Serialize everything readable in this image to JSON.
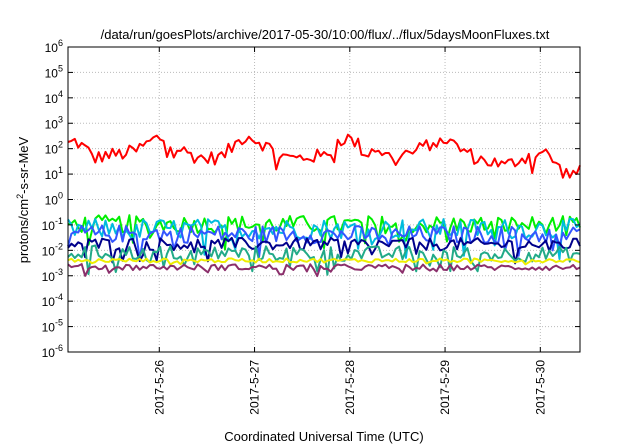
{
  "chart_data": {
    "type": "line",
    "title": "/data/run/goesPlots/archive/2017-05-30/10:00/flux/../flux/5daysMoonFluxes.txt",
    "xlabel": "Coordinated Universal Time (UTC)",
    "ylabel": {
      "main": "protons/cm",
      "sup": "2",
      "rest": "-s-sr-MeV"
    },
    "yscale": "log",
    "ylim": [
      1e-06,
      1000000.0
    ],
    "y_ticks": [
      {
        "value": 1000000.0,
        "base": "10",
        "exp": "6"
      },
      {
        "value": 100000.0,
        "base": "10",
        "exp": "5"
      },
      {
        "value": 10000.0,
        "base": "10",
        "exp": "4"
      },
      {
        "value": 1000.0,
        "base": "10",
        "exp": "3"
      },
      {
        "value": 100.0,
        "base": "10",
        "exp": "2"
      },
      {
        "value": 10.0,
        "base": "10",
        "exp": "1"
      },
      {
        "value": 1.0,
        "base": "10",
        "exp": "0"
      },
      {
        "value": 0.1,
        "base": "10",
        "exp": "-1"
      },
      {
        "value": 0.01,
        "base": "10",
        "exp": "-2"
      },
      {
        "value": 0.001,
        "base": "10",
        "exp": "-3"
      },
      {
        "value": 0.0001,
        "base": "10",
        "exp": "-4"
      },
      {
        "value": 1e-05,
        "base": "10",
        "exp": "-5"
      },
      {
        "value": 1e-06,
        "base": "10",
        "exp": "-6"
      }
    ],
    "xlim": [
      "2017-05-25T01:00",
      "2017-05-30T10:00"
    ],
    "x_ticks": [
      {
        "value": "2017-05-26T00:00",
        "label": "2017-5-26"
      },
      {
        "value": "2017-05-27T00:00",
        "label": "2017-5-27"
      },
      {
        "value": "2017-05-28T00:00",
        "label": "2017-5-28"
      },
      {
        "value": "2017-05-29T00:00",
        "label": "2017-5-29"
      },
      {
        "value": "2017-05-30T00:00",
        "label": "2017-5-30"
      }
    ],
    "grid": true,
    "series": [
      {
        "color": "#ff0000",
        "noise": 0.28,
        "points": [
          [
            "2017-05-25T01:00",
            150
          ],
          [
            "2017-05-25T03:00",
            200
          ],
          [
            "2017-05-25T06:00",
            80
          ],
          [
            "2017-05-25T08:00",
            40
          ],
          [
            "2017-05-25T10:00",
            55
          ],
          [
            "2017-05-25T14:00",
            60
          ],
          [
            "2017-05-25T18:00",
            80
          ],
          [
            "2017-05-25T22:00",
            200
          ],
          [
            "2017-05-26T00:00",
            280
          ],
          [
            "2017-05-26T03:00",
            150
          ],
          [
            "2017-05-26T06:00",
            80
          ],
          [
            "2017-05-26T09:00",
            50
          ],
          [
            "2017-05-26T12:00",
            40
          ],
          [
            "2017-05-26T16:00",
            50
          ],
          [
            "2017-05-26T20:00",
            200
          ],
          [
            "2017-05-26T22:00",
            350
          ],
          [
            "2017-05-27T01:00",
            200
          ],
          [
            "2017-05-27T04:00",
            100
          ],
          [
            "2017-05-27T07:00",
            50
          ],
          [
            "2017-05-27T10:00",
            40
          ],
          [
            "2017-05-27T14:00",
            50
          ],
          [
            "2017-05-27T18:00",
            50
          ],
          [
            "2017-05-27T21:00",
            200
          ],
          [
            "2017-05-27T23:00",
            280
          ],
          [
            "2017-05-28T02:00",
            150
          ],
          [
            "2017-05-28T04:00",
            60
          ],
          [
            "2017-05-28T07:00",
            120
          ],
          [
            "2017-05-28T09:00",
            50
          ],
          [
            "2017-05-28T12:00",
            60
          ],
          [
            "2017-05-28T16:00",
            70
          ],
          [
            "2017-05-28T20:00",
            150
          ],
          [
            "2017-05-28T23:00",
            300
          ],
          [
            "2017-05-29T02:00",
            150
          ],
          [
            "2017-05-29T05:00",
            80
          ],
          [
            "2017-05-29T08:00",
            40
          ],
          [
            "2017-05-29T12:00",
            30
          ],
          [
            "2017-05-29T15:00",
            20
          ],
          [
            "2017-05-29T19:00",
            40
          ],
          [
            "2017-05-29T22:00",
            60
          ],
          [
            "2017-05-30T01:00",
            70
          ],
          [
            "2017-05-30T03:00",
            40
          ],
          [
            "2017-05-30T05:00",
            15
          ],
          [
            "2017-05-30T07:00",
            10
          ],
          [
            "2017-05-30T10:00",
            12
          ]
        ]
      },
      {
        "color": "#00ee00",
        "noise": 0.35,
        "points": [
          [
            "2017-05-25T01:00",
            0.11
          ],
          [
            "2017-05-30T10:00",
            0.1
          ]
        ]
      },
      {
        "color": "#00bbdd",
        "noise": 0.4,
        "points": [
          [
            "2017-05-25T01:00",
            0.07
          ],
          [
            "2017-05-30T10:00",
            0.07
          ]
        ]
      },
      {
        "color": "#3355ff",
        "noise": 0.35,
        "points": [
          [
            "2017-05-25T01:00",
            0.045
          ],
          [
            "2017-05-30T10:00",
            0.04
          ]
        ]
      },
      {
        "color": "#00008b",
        "noise": 0.25,
        "points": [
          [
            "2017-05-25T01:00",
            0.018
          ],
          [
            "2017-05-30T10:00",
            0.017
          ]
        ]
      },
      {
        "color": "#22aa88",
        "noise": 0.3,
        "points": [
          [
            "2017-05-25T01:00",
            0.008
          ],
          [
            "2017-05-30T10:00",
            0.007
          ]
        ]
      },
      {
        "color": "#eeee00",
        "noise": 0.08,
        "points": [
          [
            "2017-05-25T01:00",
            0.004
          ],
          [
            "2017-05-30T10:00",
            0.004
          ]
        ]
      },
      {
        "color": "#8b2f6b",
        "noise": 0.12,
        "points": [
          [
            "2017-05-25T01:00",
            0.0022
          ],
          [
            "2017-05-30T10:00",
            0.0021
          ]
        ]
      }
    ]
  }
}
